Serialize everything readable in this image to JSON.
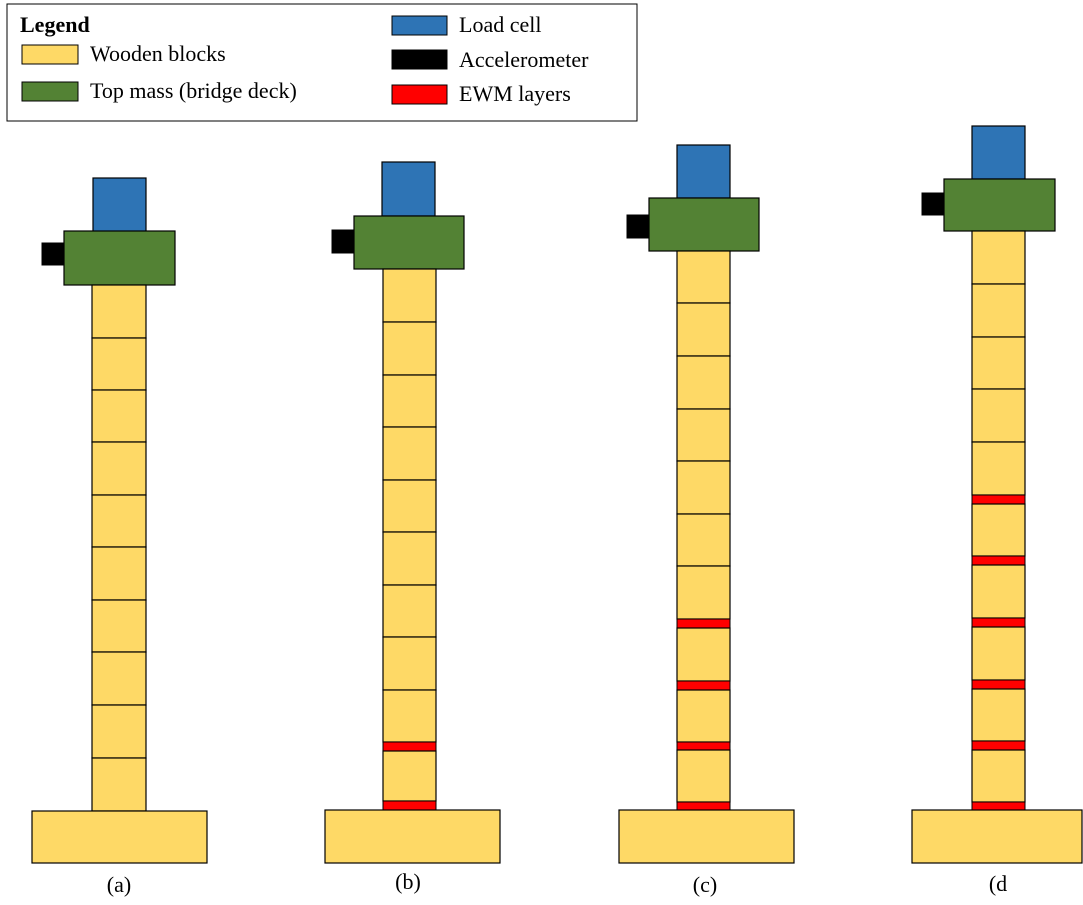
{
  "colors": {
    "wood": "#FED966",
    "deck": "#538234",
    "load_cell": "#2E74B5",
    "accelerometer": "#000000",
    "ewm": "#FF0000",
    "outline": "#000000"
  },
  "legend": {
    "title": "Legend",
    "items": [
      {
        "label": "Wooden blocks",
        "color_key": "wood"
      },
      {
        "label": "Top mass (bridge deck)",
        "color_key": "deck"
      },
      {
        "label": "Load cell",
        "color_key": "load_cell"
      },
      {
        "label": "Accelerometer",
        "color_key": "accelerometer"
      },
      {
        "label": "EWM layers",
        "color_key": "ewm"
      }
    ]
  },
  "models": [
    {
      "caption": "(a)",
      "wooden_blocks": 10,
      "ewm_layers": 0
    },
    {
      "caption": "(b)",
      "wooden_blocks": 10,
      "ewm_layers": 2
    },
    {
      "caption": "(c)",
      "wooden_blocks": 10,
      "ewm_layers": 4
    },
    {
      "caption": "(d",
      "wooden_blocks": 10,
      "ewm_layers": 6
    }
  ]
}
